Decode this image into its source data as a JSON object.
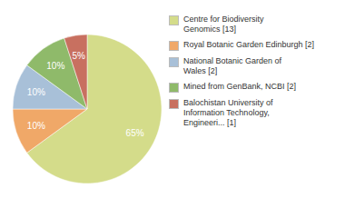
{
  "chart_data": {
    "type": "pie",
    "categories": [
      "Centre for Biodiversity\nGenomics [13]",
      "Royal Botanic Garden Edinburgh [2]",
      "National Botanic Garden of\nWales [2]",
      "Mined from GenBank, NCBI [2]",
      "Balochistan University of\nInformation Technology,\nEngineeri... [1]"
    ],
    "values": [
      65,
      10,
      10,
      10,
      5
    ],
    "value_labels": [
      "65%",
      "10%",
      "10%",
      "10%",
      "5%"
    ],
    "data_labels": true,
    "colors": [
      "#d4dc8a",
      "#f0a868",
      "#a8c0d8",
      "#8fba6a",
      "#c87060"
    ],
    "legend": "right"
  }
}
